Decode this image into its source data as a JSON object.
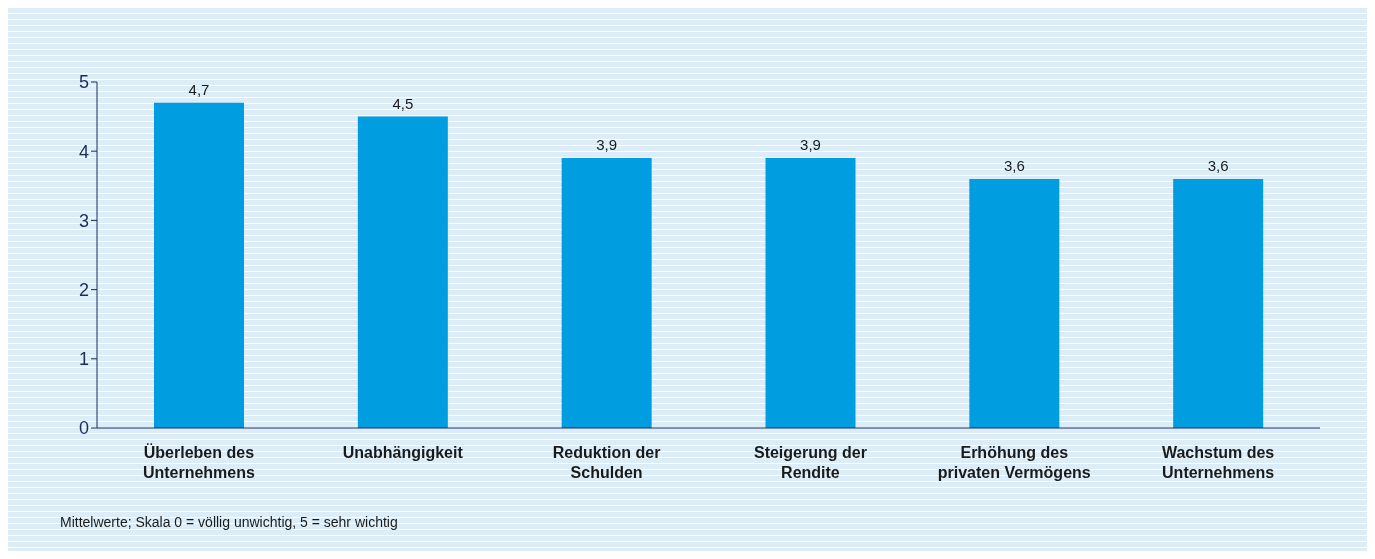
{
  "chart_data": {
    "type": "bar",
    "categories": [
      "Überleben des Unternehmens",
      "Unabhängigkeit",
      "Reduktion der Schulden",
      "Steigerung der Rendite",
      "Erhöhung des privaten Vermögens",
      "Wachstum des Unternehmens"
    ],
    "values": [
      4.7,
      4.5,
      3.9,
      3.9,
      3.6,
      3.6
    ],
    "value_labels": [
      "4,7",
      "4,5",
      "3,9",
      "3,9",
      "3,6",
      "3,6"
    ],
    "color": "#009ee0",
    "ylim": [
      0,
      5
    ],
    "yticks": [
      0,
      1,
      2,
      3,
      4,
      5
    ],
    "grid": false,
    "legend": false,
    "annotations": [
      "Mittelwerte; Skala 0 = völlig unwichtig, 5 = sehr wichtig"
    ]
  }
}
